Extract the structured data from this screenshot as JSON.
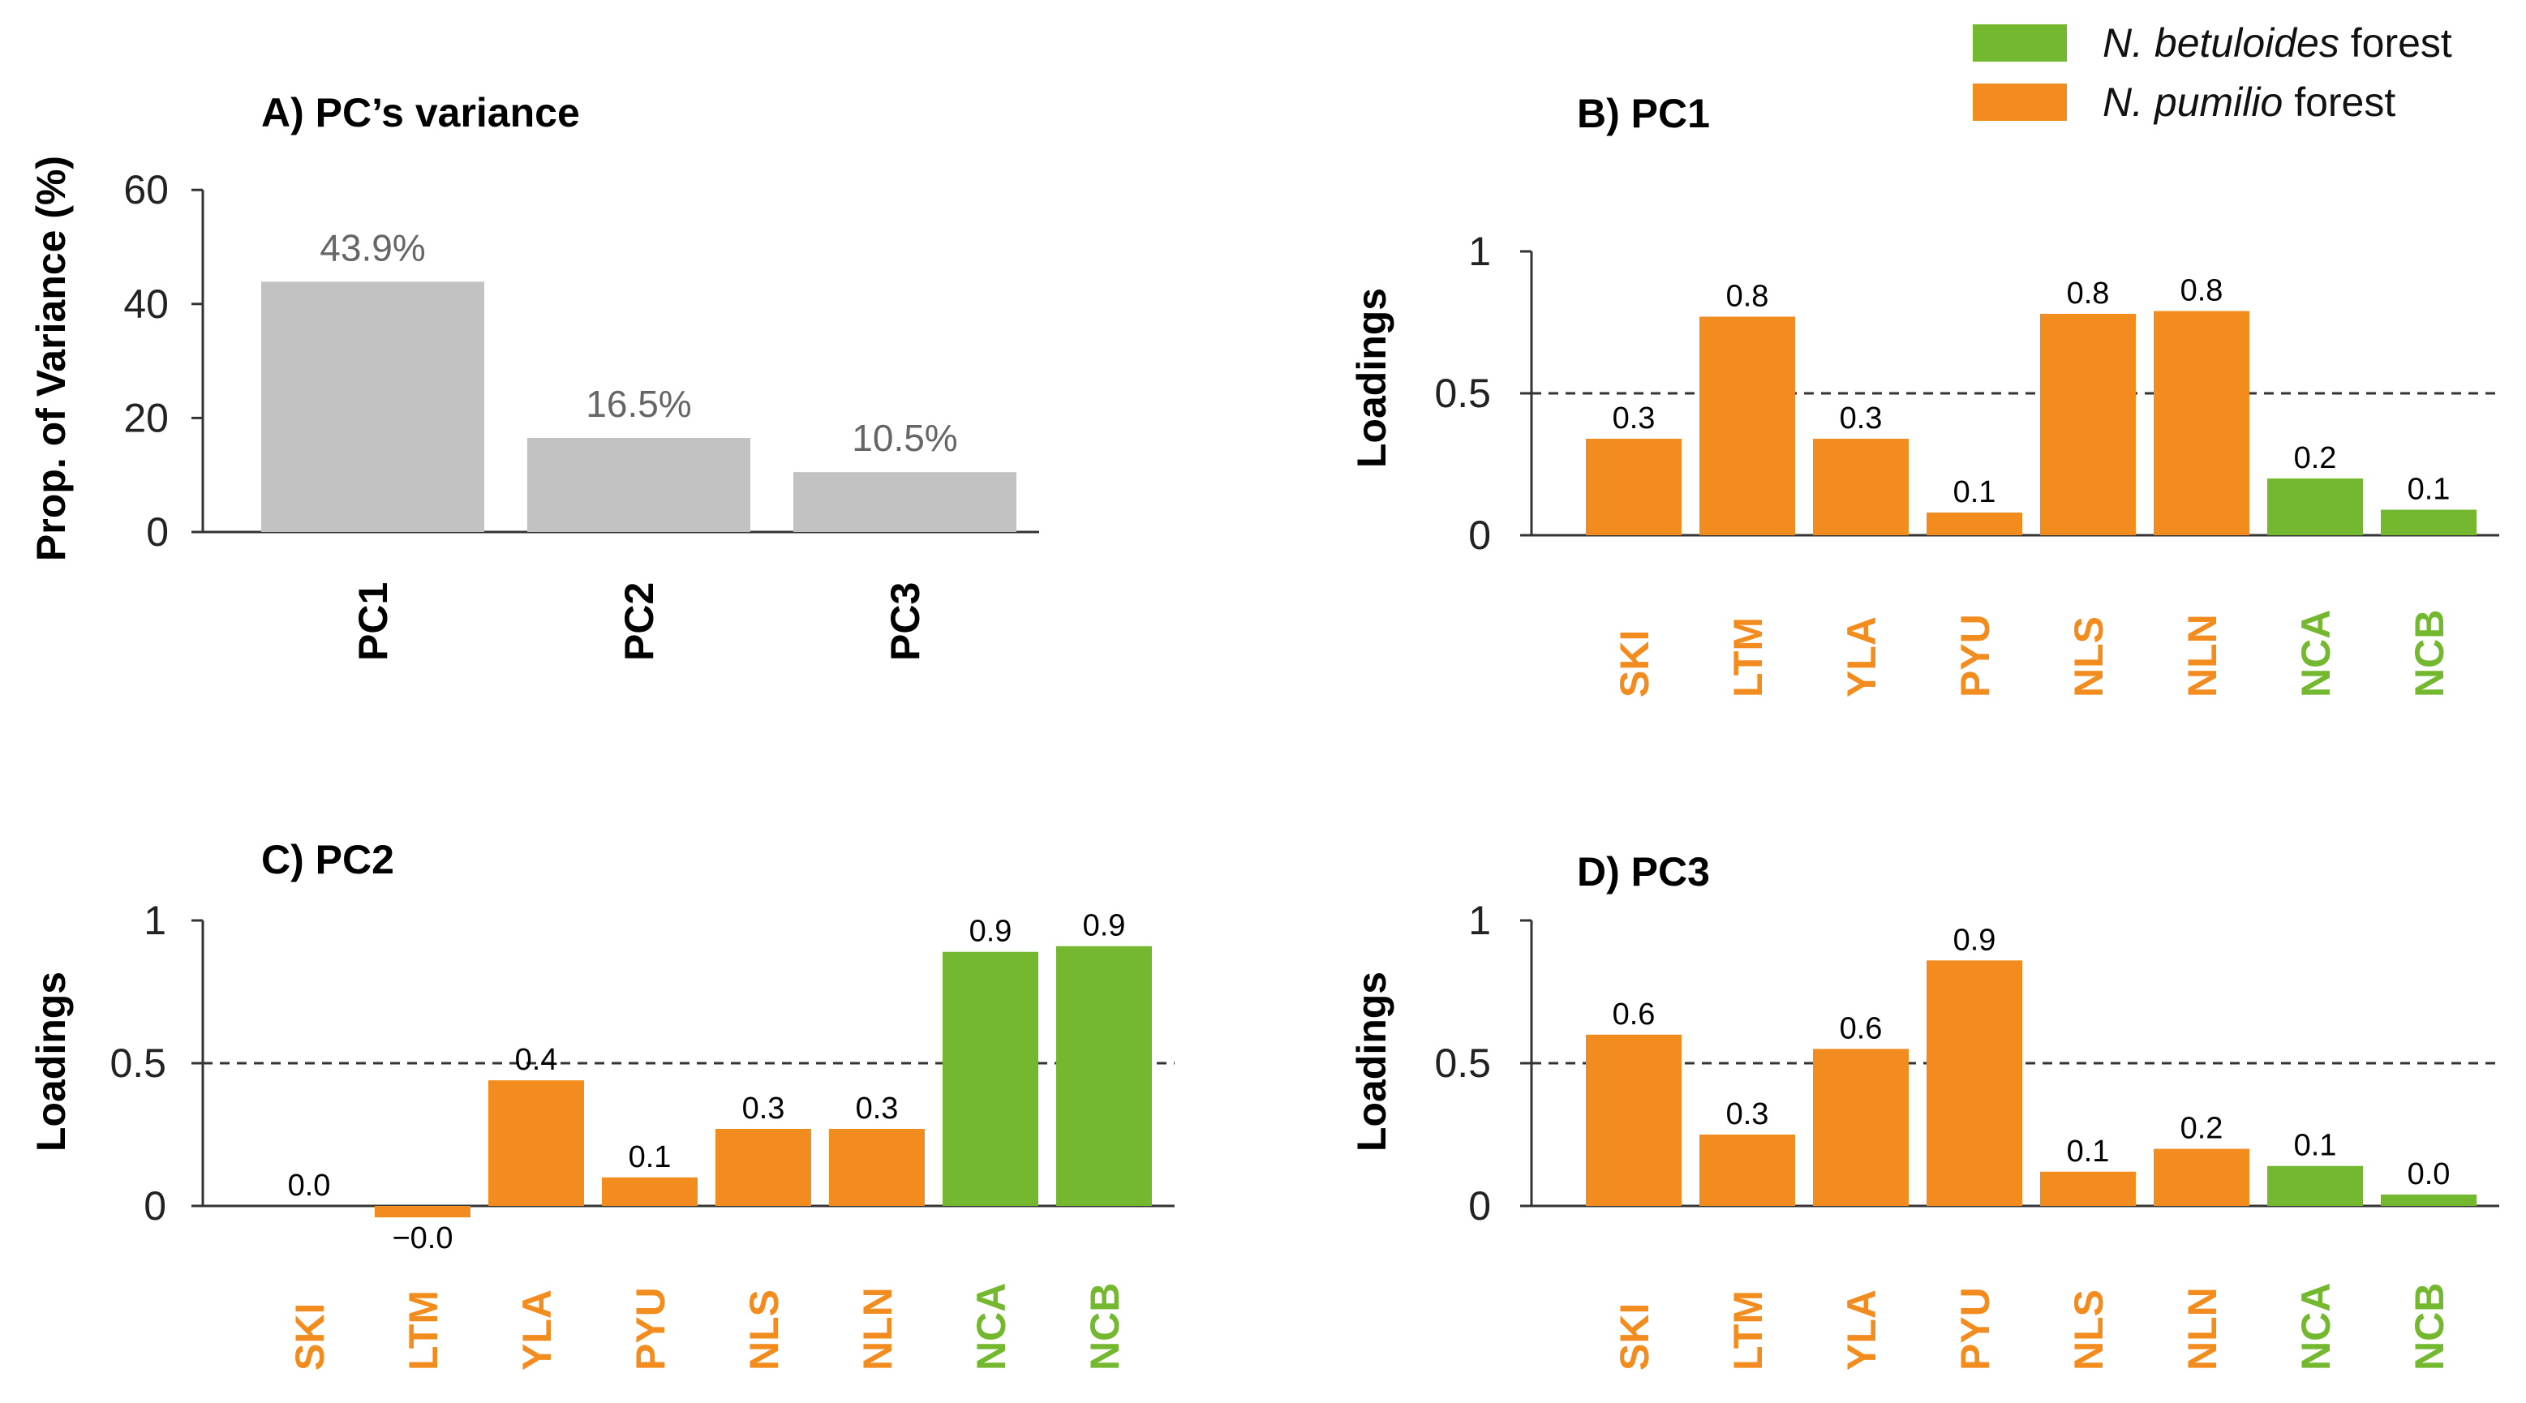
{
  "colors": {
    "pumilio": "#f28c1f",
    "betuloides": "#73b82e",
    "variance": "#c2c2c2",
    "axis": "#333333",
    "guide": "#333333"
  },
  "legend": {
    "items": [
      {
        "italic": "N. betuloides",
        "rest": " forest",
        "color_key": "betuloides"
      },
      {
        "italic": "N. pumilio",
        "rest": " forest",
        "color_key": "pumilio"
      }
    ]
  },
  "chart_data": [
    {
      "id": "A",
      "type": "bar",
      "title": "A) PC’s variance",
      "ylabel": "Prop. of Variance (%)",
      "xlabel": "",
      "ylim": [
        0,
        60
      ],
      "yticks": [
        "0",
        "20",
        "40",
        "60"
      ],
      "categories": [
        "PC1",
        "PC2",
        "PC3"
      ],
      "values": [
        43.9,
        16.5,
        10.5
      ],
      "labels": [
        "43.9%",
        "16.5%",
        "10.5%"
      ]
    },
    {
      "id": "B",
      "type": "bar",
      "title": "B) PC1",
      "ylabel": "Loadings",
      "ylim": [
        0,
        1
      ],
      "yticks": [
        "0",
        "0.5",
        "1"
      ],
      "reference_line": 0.5,
      "categories": [
        "SKI",
        "LTM",
        "YLA",
        "PYU",
        "NLS",
        "NLN",
        "NCA",
        "NCB"
      ],
      "groups": [
        "pumilio",
        "pumilio",
        "pumilio",
        "pumilio",
        "pumilio",
        "pumilio",
        "betuloides",
        "betuloides"
      ],
      "values": [
        0.34,
        0.77,
        0.34,
        0.08,
        0.78,
        0.79,
        0.2,
        0.09
      ],
      "labels": [
        "0.3",
        "0.8",
        "0.3",
        "0.1",
        "0.8",
        "0.8",
        "0.2",
        "0.1"
      ]
    },
    {
      "id": "C",
      "type": "bar",
      "title": "C) PC2",
      "ylabel": "Loadings",
      "ylim": [
        -0.1,
        1
      ],
      "yticks": [
        "0",
        "0.5",
        "1"
      ],
      "reference_line": 0.5,
      "categories": [
        "SKI",
        "LTM",
        "YLA",
        "PYU",
        "NLS",
        "NLN",
        "NCA",
        "NCB"
      ],
      "groups": [
        "pumilio",
        "pumilio",
        "pumilio",
        "pumilio",
        "pumilio",
        "pumilio",
        "betuloides",
        "betuloides"
      ],
      "values": [
        0.0,
        -0.04,
        0.44,
        0.1,
        0.27,
        0.27,
        0.89,
        0.91
      ],
      "labels": [
        "0.0",
        "−0.0",
        "0.4",
        "0.1",
        "0.3",
        "0.3",
        "0.9",
        "0.9"
      ]
    },
    {
      "id": "D",
      "type": "bar",
      "title": "D) PC3",
      "ylabel": "Loadings",
      "ylim": [
        0,
        1
      ],
      "yticks": [
        "0",
        "0.5",
        "1"
      ],
      "reference_line": 0.5,
      "categories": [
        "SKI",
        "LTM",
        "YLA",
        "PYU",
        "NLS",
        "NLN",
        "NCA",
        "NCB"
      ],
      "groups": [
        "pumilio",
        "pumilio",
        "pumilio",
        "pumilio",
        "pumilio",
        "pumilio",
        "betuloides",
        "betuloides"
      ],
      "values": [
        0.6,
        0.25,
        0.55,
        0.86,
        0.12,
        0.2,
        0.14,
        0.04
      ],
      "labels": [
        "0.6",
        "0.3",
        "0.6",
        "0.9",
        "0.1",
        "0.2",
        "0.1",
        "0.0"
      ]
    }
  ]
}
